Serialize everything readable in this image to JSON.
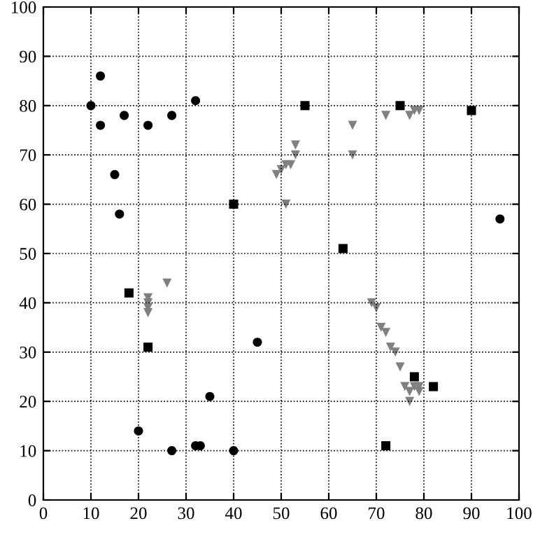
{
  "chart_data": {
    "type": "scatter",
    "xlim": [
      0,
      100
    ],
    "ylim": [
      0,
      100
    ],
    "xticks": [
      0,
      10,
      20,
      30,
      40,
      50,
      60,
      70,
      80,
      90,
      100
    ],
    "yticks": [
      0,
      10,
      20,
      30,
      40,
      50,
      60,
      70,
      80,
      90,
      100
    ],
    "grid": true,
    "series": [
      {
        "color": "#000000",
        "marker": "circle",
        "x": [
          10,
          12,
          12,
          15,
          16,
          17,
          22,
          27,
          32,
          20,
          27,
          32,
          33,
          35,
          40,
          45,
          96
        ],
        "values": [
          80,
          86,
          76,
          66,
          58,
          78,
          76,
          78,
          81,
          14,
          10,
          11,
          11,
          21,
          10,
          32,
          57
        ]
      },
      {
        "color": "#000000",
        "marker": "square",
        "x": [
          18,
          22,
          40,
          55,
          63,
          72,
          75,
          78,
          82,
          90
        ],
        "values": [
          42,
          31,
          60,
          80,
          51,
          11,
          80,
          25,
          23,
          79
        ]
      },
      {
        "color": "#808080",
        "marker": "triangle",
        "x": [
          22,
          22,
          22,
          22,
          26,
          49,
          50,
          51,
          52,
          51,
          53,
          53,
          65,
          65,
          69,
          70,
          71,
          72,
          73,
          74,
          75,
          76,
          77,
          78,
          79,
          79,
          77,
          72,
          77,
          78,
          79
        ],
        "values": [
          38,
          39,
          40,
          41,
          44,
          66,
          67,
          68,
          68,
          60,
          70,
          72,
          76,
          70,
          40,
          39,
          35,
          34,
          31,
          30,
          27,
          23,
          22,
          23,
          22,
          23,
          20,
          78,
          78,
          79,
          79
        ]
      }
    ]
  }
}
